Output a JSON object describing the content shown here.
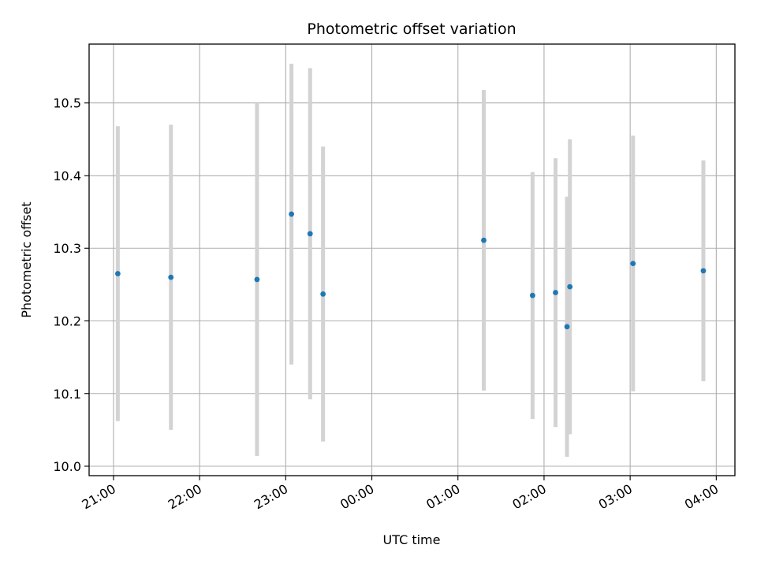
{
  "chart_data": {
    "type": "scatter",
    "title": "Photometric offset variation",
    "xlabel": "UTC time",
    "ylabel": "Photometric offset",
    "xlim": [
      "20:43",
      "04:13"
    ],
    "ylim": [
      9.987,
      10.581
    ],
    "x_ticks": [
      "21:00",
      "22:00",
      "23:00",
      "00:00",
      "01:00",
      "02:00",
      "03:00",
      "04:00"
    ],
    "y_ticks": [
      "10.0",
      "10.1",
      "10.2",
      "10.3",
      "10.4",
      "10.5"
    ],
    "grid": true,
    "colors": {
      "marker": "#1f77b4",
      "errorbar": "#d3d3d3",
      "grid": "#b0b0b0"
    },
    "points": [
      {
        "time": "21:03",
        "y": 10.265,
        "err": 0.203
      },
      {
        "time": "21:40",
        "y": 10.26,
        "err": 0.21
      },
      {
        "time": "22:40",
        "y": 10.257,
        "err": 0.243
      },
      {
        "time": "23:04",
        "y": 10.347,
        "err": 0.207
      },
      {
        "time": "23:17",
        "y": 10.32,
        "err": 0.228
      },
      {
        "time": "23:26",
        "y": 10.237,
        "err": 0.203
      },
      {
        "time": "01:18",
        "y": 10.311,
        "err": 0.207
      },
      {
        "time": "01:52",
        "y": 10.235,
        "err": 0.17
      },
      {
        "time": "02:08",
        "y": 10.239,
        "err": 0.185
      },
      {
        "time": "02:16",
        "y": 10.192,
        "err": 0.179
      },
      {
        "time": "02:18",
        "y": 10.247,
        "err": 0.203
      },
      {
        "time": "03:02",
        "y": 10.279,
        "err": 0.176
      },
      {
        "time": "03:51",
        "y": 10.269,
        "err": 0.152
      }
    ]
  }
}
